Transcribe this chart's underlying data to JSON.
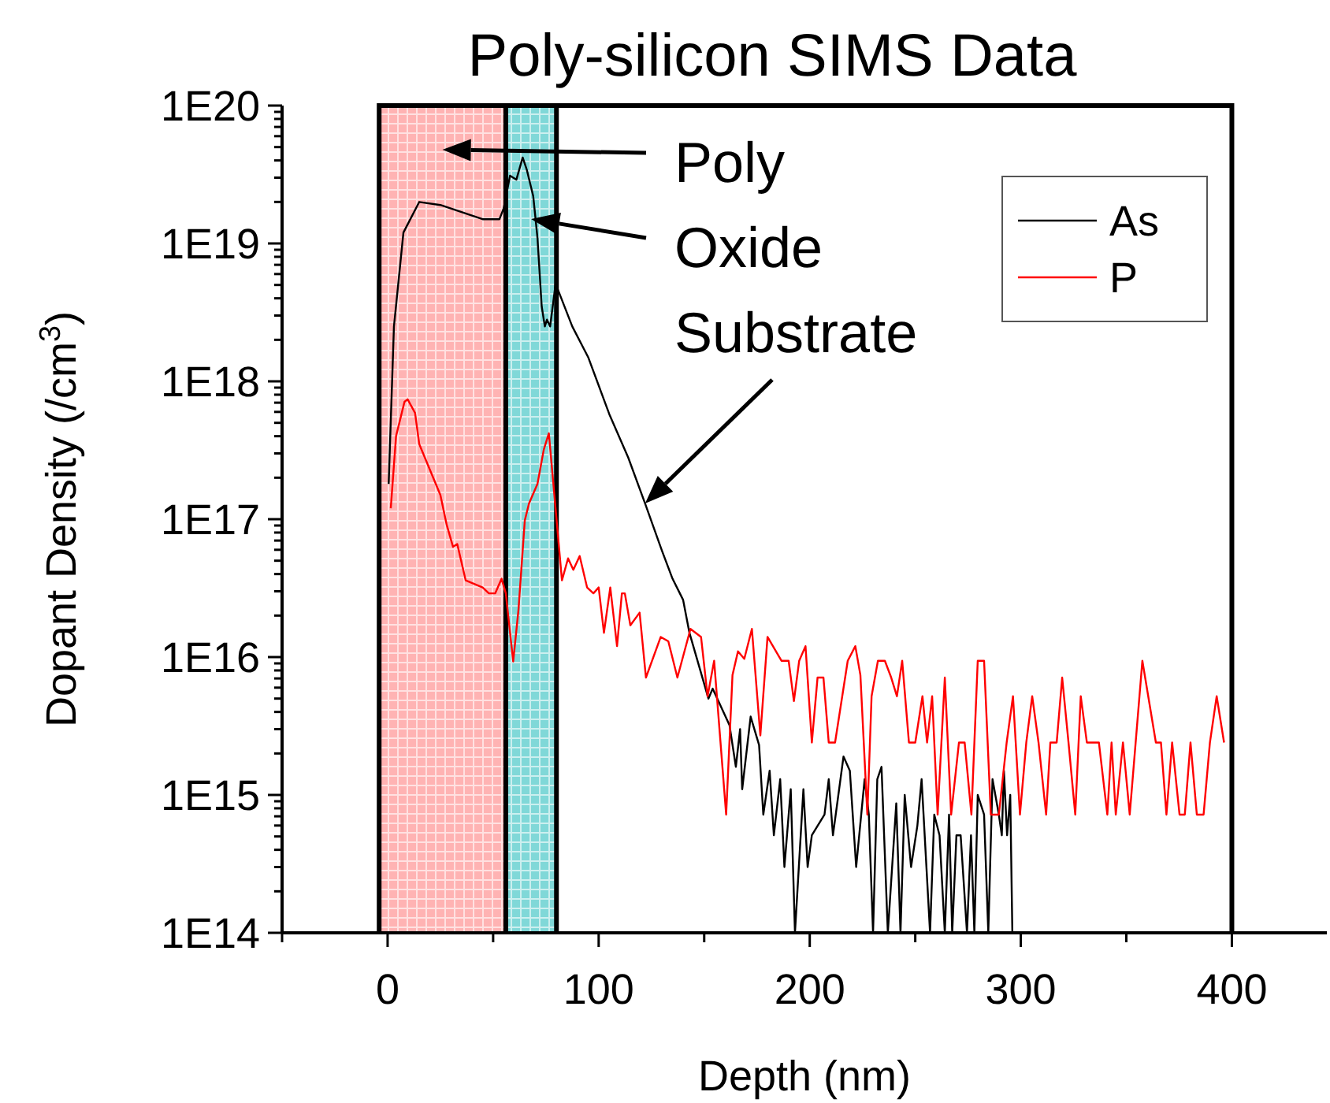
{
  "chart_data": {
    "type": "line",
    "title": "Poly-silicon SIMS Data",
    "xlabel": "Depth (nm)",
    "ylabel": "Dopant Density (/cm$^{3}$)",
    "log": "y",
    "legend": "top right",
    "xlim": [
      -50,
      445
    ],
    "xticks": [
      {
        "value": -50,
        "label": null
      },
      0,
      {
        "value": 50,
        "label": null
      },
      100,
      {
        "value": 150,
        "label": null
      },
      200,
      {
        "value": 250,
        "label": null
      },
      300,
      {
        "value": 350,
        "label": null
      },
      400
    ],
    "ylim": [
      100000000000000.0,
      1e+20
    ],
    "yticks": [
      {
        "value": 100000000000000.0,
        "label": "1E14"
      },
      {
        "value": 200000000000000.0,
        "label": null
      },
      {
        "value": 300000000000000.0,
        "label": null
      },
      {
        "value": 400000000000000.0,
        "label": null
      },
      {
        "value": 500000000000000.0,
        "label": null
      },
      {
        "value": 600000000000000.0,
        "label": null
      },
      {
        "value": 700000000000000.0,
        "label": null
      },
      {
        "value": 800000000000000.0,
        "label": null
      },
      {
        "value": 900000000000000.0,
        "label": null
      },
      {
        "value": 1000000000000000.0,
        "label": "1E15"
      },
      {
        "value": 2000000000000000.0,
        "label": null
      },
      {
        "value": 3000000000000000.0,
        "label": null
      },
      {
        "value": 4000000000000000.0,
        "label": null
      },
      {
        "value": 5000000000000000.0,
        "label": null
      },
      {
        "value": 6000000000000000.0,
        "label": null
      },
      {
        "value": 7000000000000000.0,
        "label": null
      },
      {
        "value": 8000000000000000.0,
        "label": null
      },
      {
        "value": 9000000000000000.0,
        "label": null
      },
      {
        "value": 1e+16,
        "label": "1E16"
      },
      {
        "value": 2e+16,
        "label": null
      },
      {
        "value": 3e+16,
        "label": null
      },
      {
        "value": 4e+16,
        "label": null
      },
      {
        "value": 5e+16,
        "label": null
      },
      {
        "value": 6e+16,
        "label": null
      },
      {
        "value": 7e+16,
        "label": null
      },
      {
        "value": 8e+16,
        "label": null
      },
      {
        "value": 9e+16,
        "label": null
      },
      {
        "value": 1e+17,
        "label": "1E17"
      },
      {
        "value": 2e+17,
        "label": null
      },
      {
        "value": 3e+17,
        "label": null
      },
      {
        "value": 4e+17,
        "label": null
      },
      {
        "value": 5e+17,
        "label": null
      },
      {
        "value": 6e+17,
        "label": null
      },
      {
        "value": 7e+17,
        "label": null
      },
      {
        "value": 8e+17,
        "label": null
      },
      {
        "value": 9e+17,
        "label": null
      },
      {
        "value": 1e+18,
        "label": "1E18"
      },
      {
        "value": 2e+18,
        "label": null
      },
      {
        "value": 3e+18,
        "label": null
      },
      {
        "value": 4e+18,
        "label": null
      },
      {
        "value": 5e+18,
        "label": null
      },
      {
        "value": 6e+18,
        "label": null
      },
      {
        "value": 7e+18,
        "label": null
      },
      {
        "value": 8e+18,
        "label": null
      },
      {
        "value": 9e+18,
        "label": null
      },
      {
        "value": 1e+19,
        "label": "1E19"
      },
      {
        "value": 2e+19,
        "label": null
      },
      {
        "value": 3e+19,
        "label": null
      },
      {
        "value": 4e+19,
        "label": null
      },
      {
        "value": 5e+19,
        "label": null
      },
      {
        "value": 6e+19,
        "label": null
      },
      {
        "value": 7e+19,
        "label": null
      },
      {
        "value": 8e+19,
        "label": null
      },
      {
        "value": 9e+19,
        "label": null
      },
      {
        "value": 1e+20,
        "label": "1E20"
      }
    ],
    "bands": [
      {
        "axis": "x",
        "from": -4,
        "to": 56,
        "label": "Poly",
        "color": "#ffb3b3"
      },
      {
        "axis": "x",
        "from": 56,
        "to": 80,
        "label": "Oxide",
        "color": "#80d8d8"
      }
    ],
    "annotations": [
      {
        "text": "Substrate",
        "x": 122,
        "y": 1.3e+17
      }
    ],
    "series": [
      {
        "name": "As",
        "color": "#000000",
        "x": [
          0.5,
          3,
          7.5,
          15,
          25,
          45,
          53,
          55,
          58,
          61,
          64,
          66,
          69,
          71,
          73,
          74.5,
          75.5,
          77,
          79.6,
          87.5,
          95,
          105,
          114,
          122,
          130,
          135,
          140,
          143,
          152,
          154,
          162,
          165,
          167,
          168,
          172,
          176,
          178,
          181,
          183,
          186,
          188,
          191,
          193,
          197,
          199,
          201,
          207,
          209,
          211,
          216,
          219,
          222,
          226,
          228,
          230,
          232,
          234,
          237,
          241,
          243,
          245,
          248,
          251,
          253,
          257,
          259,
          261.5,
          264,
          266,
          267.5,
          269.5,
          271.5,
          274.5,
          276.4,
          278,
          279.6,
          282.6,
          284.6,
          286.6,
          289.6,
          291,
          292,
          293.5,
          295,
          296
        ],
        "values": [
          1.8e+17,
          2.5e+18,
          1.2e+19,
          2e+19,
          1.9e+19,
          1.5e+19,
          1.5e+19,
          1.8e+19,
          3.1e+19,
          2.9e+19,
          4.2e+19,
          3.4e+19,
          2.2e+19,
          1.1e+19,
          3.5e+18,
          2.5e+18,
          2.8e+18,
          2.5e+18,
          5.1e+18,
          2.5e+18,
          1.5e+18,
          5.8e+17,
          2.8e+17,
          1.3e+17,
          5.9e+16,
          3.7e+16,
          2.6e+16,
          1.5e+16,
          5000000000000000.0,
          5900000000000000.0,
          3200000000000000.0,
          1600000000000000.0,
          3000000000000000.0,
          1100000000000000.0,
          3700000000000000.0,
          2300000000000000.0,
          720000000000000.0,
          1500000000000000.0,
          510000000000000.0,
          1300000000000000.0,
          300000000000000.0,
          1100000000000000.0,
          100000000000000.0,
          1100000000000000.0,
          300000000000000.0,
          510000000000000.0,
          720000000000000.0,
          1300000000000000.0,
          510000000000000.0,
          1900000000000000.0,
          1500000000000000.0,
          300000000000000.0,
          1300000000000000.0,
          720000000000000.0,
          100000000000000.0,
          1300000000000000.0,
          1600000000000000.0,
          100000000000000.0,
          870000000000000.0,
          100000000000000.0,
          1000000000000000.0,
          300000000000000.0,
          600000000000000.0,
          1300000000000000.0,
          100000000000000.0,
          720000000000000.0,
          510000000000000.0,
          100000000000000.0,
          720000000000000.0,
          100000000000000.0,
          510000000000000.0,
          510000000000000.0,
          100000000000000.0,
          510000000000000.0,
          100000000000000.0,
          1000000000000000.0,
          720000000000000.0,
          100000000000000.0,
          1300000000000000.0,
          720000000000000.0,
          510000000000000.0,
          1500000000000000.0,
          510000000000000.0,
          1000000000000000.0,
          100000000000000.0
        ]
      },
      {
        "name": "P",
        "color": "#ff0000",
        "x": [
          1.5,
          4,
          8,
          9.5,
          13,
          15,
          25,
          28,
          31,
          33,
          37,
          39,
          45,
          48,
          51,
          54,
          56,
          59.5,
          62,
          65,
          67,
          71,
          74,
          76.4,
          82.6,
          85.5,
          88,
          91,
          94.5,
          97.5,
          100,
          102.5,
          105.5,
          108.7,
          111,
          112.4,
          115,
          119.4,
          122.4,
          129.4,
          133,
          137.3,
          143.5,
          148.5,
          151.6,
          154.7,
          160.4,
          163.4,
          166,
          169,
          172.6,
          176.6,
          180,
          186.6,
          190,
          192.5,
          195,
          198,
          201,
          203.7,
          206.5,
          209,
          212,
          218,
          221.6,
          224,
          227.3,
          229.3,
          232.3,
          235.6,
          238.6,
          241.3,
          243.8,
          247,
          250,
          253.4,
          255.6,
          258,
          260.6,
          264,
          267,
          270.7,
          273.4,
          276.6,
          279.6,
          282.6,
          285.8,
          289.6,
          293.3,
          296.3,
          299.6,
          302.6,
          305.4,
          308.4,
          312,
          314,
          317,
          319.6,
          322.6,
          325.8,
          328.4,
          331.3,
          337,
          341,
          343,
          345,
          348.4,
          351.6,
          357.6,
          364,
          366.4,
          369,
          371.7,
          375.2,
          377.7,
          380.4,
          383.4,
          386.6,
          389.6,
          392.8,
          396.3
        ],
        "values": [
          1.2e+17,
          4e+17,
          7.1e+17,
          7.4e+17,
          5.9e+17,
          3.5e+17,
          1.5e+17,
          9.1e+16,
          6.3e+16,
          6.6e+16,
          3.6e+16,
          3.5e+16,
          3.2e+16,
          2.9e+16,
          2.9e+16,
          3.7e+16,
          2.9e+16,
          9300000000000000.0,
          2.2e+16,
          9.8e+16,
          1.3e+17,
          1.8e+17,
          3.2e+17,
          4.2e+17,
          3.6e+16,
          5.2e+16,
          4.3e+16,
          5.4e+16,
          3.2e+16,
          2.9e+16,
          3.2e+16,
          1.5e+16,
          3.2e+16,
          1.2e+16,
          2.9e+16,
          2.9e+16,
          1.7e+16,
          2.1e+16,
          7100000000000000.0,
          1.4e+16,
          1.3e+16,
          7100000000000000.0,
          1.6e+16,
          1.4e+16,
          5200000000000000.0,
          9400000000000000.0,
          720000000000000.0,
          7400000000000000.0,
          1.1e+16,
          9700000000000000.0,
          1.6e+16,
          2700000000000000.0,
          1.4e+16,
          9400000000000000.0,
          9400000000000000.0,
          4800000000000000.0,
          9400000000000000.0,
          1.2e+16,
          2400000000000000.0,
          7100000000000000.0,
          7100000000000000.0,
          2400000000000000.0,
          2400000000000000.0,
          9400000000000000.0,
          1.2e+16,
          7400000000000000.0,
          720000000000000.0,
          5200000000000000.0,
          9400000000000000.0,
          9400000000000000.0,
          7100000000000000.0,
          5200000000000000.0,
          9400000000000000.0,
          2400000000000000.0,
          2400000000000000.0,
          5200000000000000.0,
          2400000000000000.0,
          5200000000000000.0,
          720000000000000.0,
          7100000000000000.0,
          720000000000000.0,
          2400000000000000.0,
          2400000000000000.0,
          720000000000000.0,
          9400000000000000.0,
          9400000000000000.0,
          720000000000000.0,
          720000000000000.0,
          2400000000000000.0,
          5200000000000000.0,
          720000000000000.0,
          2400000000000000.0,
          5200000000000000.0,
          2400000000000000.0,
          720000000000000.0,
          2400000000000000.0,
          2400000000000000.0,
          7100000000000000.0,
          2400000000000000.0,
          720000000000000.0,
          5200000000000000.0,
          2400000000000000.0,
          2400000000000000.0,
          720000000000000.0,
          2400000000000000.0,
          720000000000000.0,
          2400000000000000.0,
          720000000000000.0,
          9400000000000000.0,
          2400000000000000.0,
          2400000000000000.0,
          720000000000000.0,
          2400000000000000.0,
          720000000000000.0,
          720000000000000.0,
          2400000000000000.0,
          720000000000000.0,
          720000000000000.0,
          2400000000000000.0,
          5200000000000000.0,
          2400000000000000.0
        ]
      }
    ]
  }
}
